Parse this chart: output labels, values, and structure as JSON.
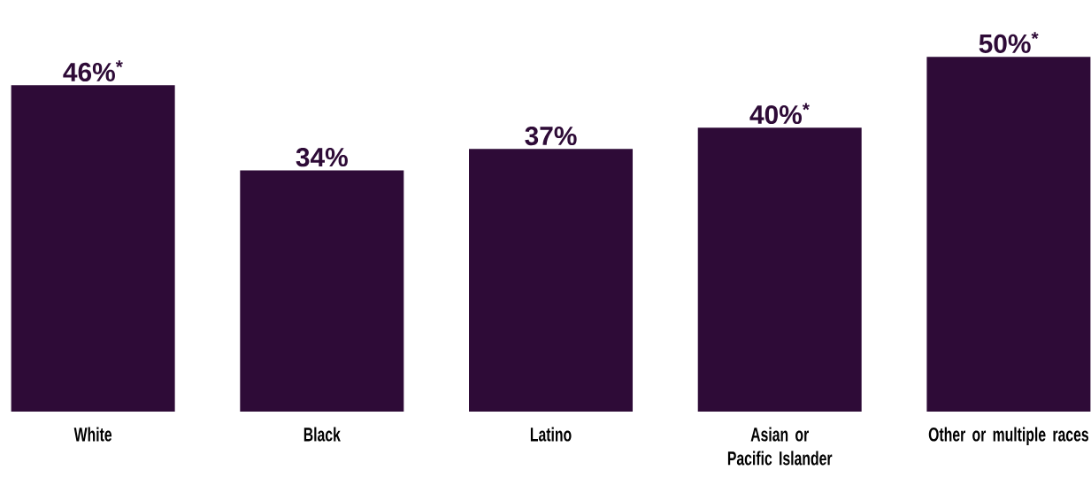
{
  "chart_data": {
    "type": "bar",
    "categories": [
      "White",
      "Black",
      "Latino",
      "Asian or Pacific Islander",
      "Other or multiple races"
    ],
    "values": [
      46,
      34,
      37,
      40,
      50
    ],
    "value_labels": [
      "46%$^{*}$",
      "34%",
      "37%",
      "40%$^{*}$",
      "50%$^{*}$"
    ],
    "color": "#2e0b37"
  }
}
